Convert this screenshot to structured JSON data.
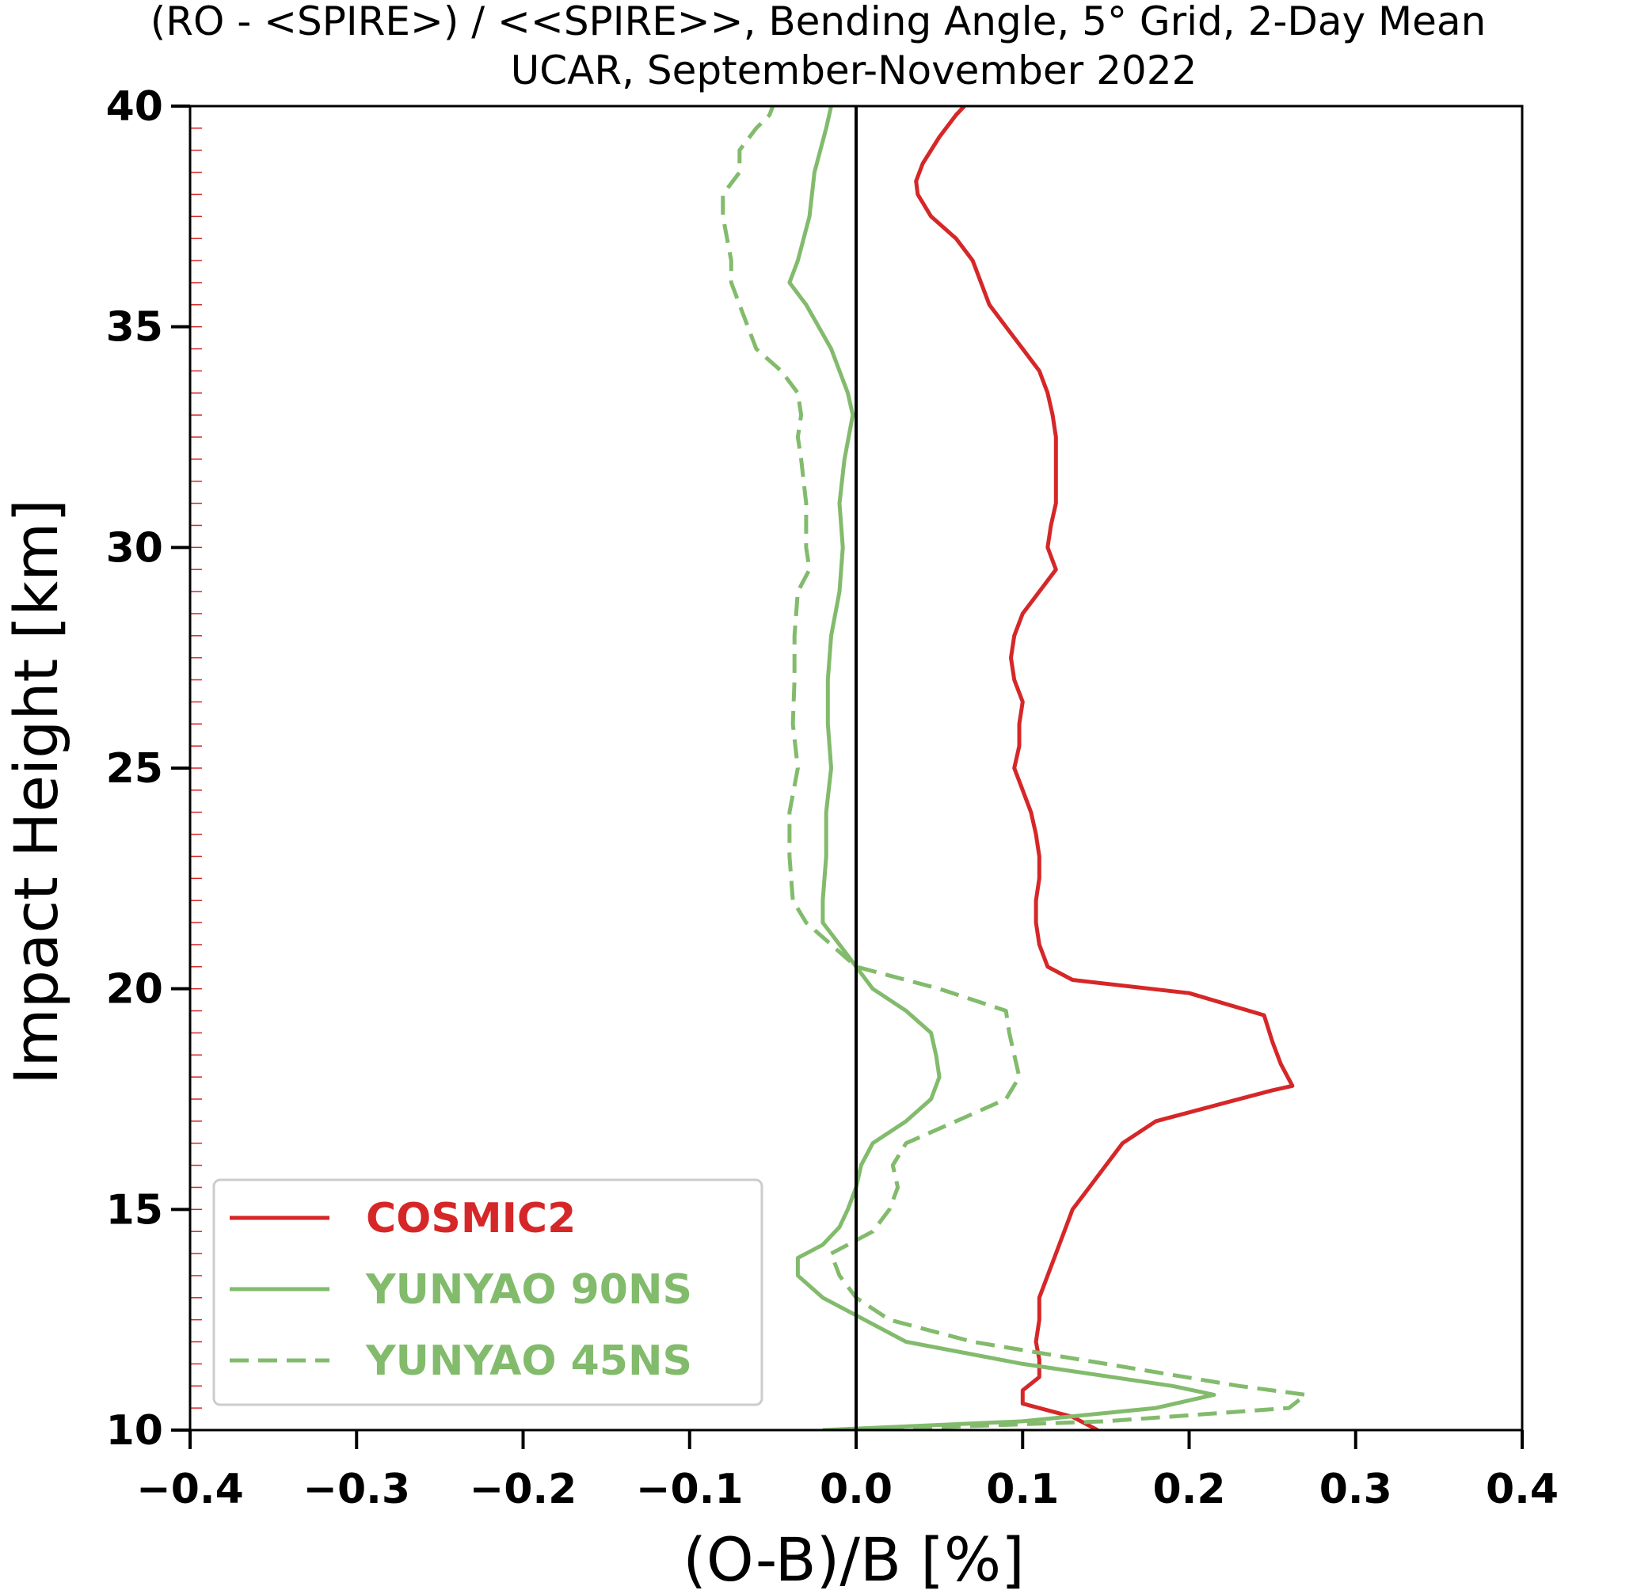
{
  "chart_data": {
    "type": "line",
    "title": "(RO - <SPIRE>) / <<SPIRE>>, Bending Angle, 5° Grid, 2-Day Mean",
    "subtitle": "UCAR, September-November 2022",
    "xlabel": "(O-B)/B [%]",
    "ylabel": "Impact Height [km]",
    "xlim": [
      -0.4,
      0.4
    ],
    "ylim": [
      10,
      40
    ],
    "x_ticks": [
      -0.4,
      -0.3,
      -0.2,
      -0.1,
      0.0,
      0.1,
      0.2,
      0.3,
      0.4
    ],
    "x_tick_labels": [
      "−0.4",
      "−0.3",
      "−0.2",
      "−0.1",
      "0.0",
      "0.1",
      "0.2",
      "0.3",
      "0.4"
    ],
    "y_ticks": [
      10,
      15,
      20,
      25,
      30,
      35,
      40
    ],
    "y_tick_labels": [
      "10",
      "15",
      "20",
      "25",
      "30",
      "35",
      "40"
    ],
    "zero_line": 0.0,
    "grid": false,
    "legend_position": "lower-left",
    "series": [
      {
        "name": "COSMIC2",
        "color": "#d62728",
        "dash": "solid",
        "points": [
          [
            0.145,
            10.0
          ],
          [
            0.13,
            10.3
          ],
          [
            0.1,
            10.6
          ],
          [
            0.1,
            10.9
          ],
          [
            0.11,
            11.2
          ],
          [
            0.11,
            11.6
          ],
          [
            0.108,
            12.0
          ],
          [
            0.11,
            12.5
          ],
          [
            0.11,
            13.0
          ],
          [
            0.115,
            13.5
          ],
          [
            0.12,
            14.0
          ],
          [
            0.125,
            14.5
          ],
          [
            0.13,
            15.0
          ],
          [
            0.14,
            15.5
          ],
          [
            0.15,
            16.0
          ],
          [
            0.16,
            16.5
          ],
          [
            0.18,
            17.0
          ],
          [
            0.22,
            17.4
          ],
          [
            0.25,
            17.7
          ],
          [
            0.262,
            17.8
          ],
          [
            0.255,
            18.3
          ],
          [
            0.25,
            18.8
          ],
          [
            0.245,
            19.4
          ],
          [
            0.2,
            19.9
          ],
          [
            0.13,
            20.2
          ],
          [
            0.115,
            20.5
          ],
          [
            0.11,
            21.0
          ],
          [
            0.108,
            21.5
          ],
          [
            0.108,
            22.0
          ],
          [
            0.11,
            22.5
          ],
          [
            0.11,
            23.0
          ],
          [
            0.108,
            23.5
          ],
          [
            0.105,
            24.0
          ],
          [
            0.1,
            24.5
          ],
          [
            0.095,
            25.0
          ],
          [
            0.098,
            25.5
          ],
          [
            0.098,
            26.0
          ],
          [
            0.1,
            26.5
          ],
          [
            0.095,
            27.0
          ],
          [
            0.093,
            27.5
          ],
          [
            0.095,
            28.0
          ],
          [
            0.1,
            28.5
          ],
          [
            0.11,
            29.0
          ],
          [
            0.12,
            29.5
          ],
          [
            0.115,
            30.0
          ],
          [
            0.117,
            30.5
          ],
          [
            0.12,
            31.0
          ],
          [
            0.12,
            31.5
          ],
          [
            0.12,
            32.0
          ],
          [
            0.12,
            32.5
          ],
          [
            0.118,
            33.0
          ],
          [
            0.115,
            33.5
          ],
          [
            0.11,
            34.0
          ],
          [
            0.1,
            34.5
          ],
          [
            0.09,
            35.0
          ],
          [
            0.08,
            35.5
          ],
          [
            0.075,
            36.0
          ],
          [
            0.07,
            36.5
          ],
          [
            0.06,
            37.0
          ],
          [
            0.045,
            37.5
          ],
          [
            0.037,
            38.0
          ],
          [
            0.036,
            38.3
          ],
          [
            0.04,
            38.7
          ],
          [
            0.05,
            39.3
          ],
          [
            0.06,
            39.8
          ],
          [
            0.065,
            40.0
          ]
        ]
      },
      {
        "name": "YUNYAO 90NS",
        "color": "#82bb6c",
        "dash": "solid",
        "points": [
          [
            -0.02,
            10.0
          ],
          [
            0.1,
            10.2
          ],
          [
            0.18,
            10.5
          ],
          [
            0.215,
            10.8
          ],
          [
            0.19,
            11.0
          ],
          [
            0.1,
            11.5
          ],
          [
            0.03,
            12.0
          ],
          [
            0.0,
            12.6
          ],
          [
            -0.02,
            13.0
          ],
          [
            -0.035,
            13.5
          ],
          [
            -0.035,
            13.9
          ],
          [
            -0.02,
            14.2
          ],
          [
            -0.01,
            14.6
          ],
          [
            -0.005,
            15.0
          ],
          [
            0.0,
            15.5
          ],
          [
            0.003,
            16.0
          ],
          [
            0.01,
            16.5
          ],
          [
            0.03,
            17.0
          ],
          [
            0.045,
            17.5
          ],
          [
            0.05,
            18.0
          ],
          [
            0.048,
            18.5
          ],
          [
            0.045,
            19.0
          ],
          [
            0.03,
            19.5
          ],
          [
            0.01,
            20.0
          ],
          [
            0.0,
            20.5
          ],
          [
            -0.01,
            21.0
          ],
          [
            -0.02,
            21.5
          ],
          [
            -0.02,
            22.0
          ],
          [
            -0.018,
            23.0
          ],
          [
            -0.018,
            24.0
          ],
          [
            -0.015,
            25.0
          ],
          [
            -0.017,
            26.0
          ],
          [
            -0.017,
            27.0
          ],
          [
            -0.015,
            28.0
          ],
          [
            -0.01,
            29.0
          ],
          [
            -0.008,
            30.0
          ],
          [
            -0.01,
            31.0
          ],
          [
            -0.007,
            32.0
          ],
          [
            -0.002,
            33.0
          ],
          [
            -0.005,
            33.5
          ],
          [
            -0.015,
            34.5
          ],
          [
            -0.03,
            35.5
          ],
          [
            -0.04,
            36.0
          ],
          [
            -0.035,
            36.5
          ],
          [
            -0.028,
            37.5
          ],
          [
            -0.025,
            38.5
          ],
          [
            -0.018,
            39.5
          ],
          [
            -0.015,
            40.0
          ]
        ]
      },
      {
        "name": "YUNYAO 45NS",
        "color": "#82bb6c",
        "dash": "dashed",
        "points": [
          [
            0.0,
            10.0
          ],
          [
            0.15,
            10.2
          ],
          [
            0.26,
            10.5
          ],
          [
            0.27,
            10.8
          ],
          [
            0.23,
            11.0
          ],
          [
            0.15,
            11.5
          ],
          [
            0.07,
            12.0
          ],
          [
            0.02,
            12.5
          ],
          [
            0.0,
            13.0
          ],
          [
            -0.01,
            13.5
          ],
          [
            -0.015,
            14.0
          ],
          [
            0.01,
            14.5
          ],
          [
            0.02,
            15.0
          ],
          [
            0.025,
            15.5
          ],
          [
            0.022,
            16.0
          ],
          [
            0.03,
            16.5
          ],
          [
            0.06,
            17.0
          ],
          [
            0.09,
            17.5
          ],
          [
            0.098,
            18.0
          ],
          [
            0.095,
            18.5
          ],
          [
            0.092,
            19.0
          ],
          [
            0.09,
            19.5
          ],
          [
            0.05,
            20.0
          ],
          [
            0.0,
            20.5
          ],
          [
            -0.015,
            21.0
          ],
          [
            -0.03,
            21.5
          ],
          [
            -0.038,
            22.0
          ],
          [
            -0.04,
            23.0
          ],
          [
            -0.04,
            24.0
          ],
          [
            -0.035,
            25.0
          ],
          [
            -0.038,
            26.0
          ],
          [
            -0.037,
            27.0
          ],
          [
            -0.037,
            28.0
          ],
          [
            -0.035,
            29.0
          ],
          [
            -0.028,
            29.5
          ],
          [
            -0.03,
            30.0
          ],
          [
            -0.03,
            31.0
          ],
          [
            -0.033,
            32.0
          ],
          [
            -0.035,
            32.5
          ],
          [
            -0.033,
            33.0
          ],
          [
            -0.035,
            33.5
          ],
          [
            -0.045,
            34.0
          ],
          [
            -0.06,
            34.5
          ],
          [
            -0.065,
            35.0
          ],
          [
            -0.07,
            35.5
          ],
          [
            -0.075,
            36.0
          ],
          [
            -0.075,
            36.5
          ],
          [
            -0.08,
            37.5
          ],
          [
            -0.08,
            38.0
          ],
          [
            -0.07,
            38.5
          ],
          [
            -0.07,
            39.0
          ],
          [
            -0.06,
            39.5
          ],
          [
            -0.052,
            39.8
          ],
          [
            -0.05,
            40.0
          ]
        ]
      }
    ]
  }
}
